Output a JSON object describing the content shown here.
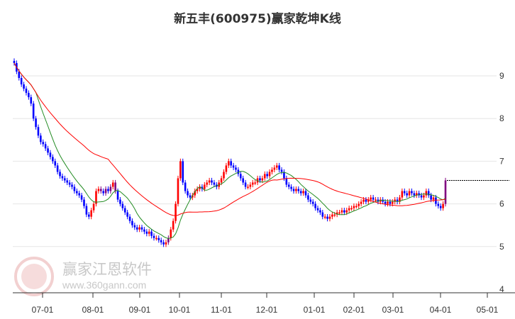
{
  "chart_data": {
    "type": "candlestick",
    "title": "新五丰(600975)赢家乾坤K线",
    "ylim": [
      4,
      9.4
    ],
    "y_ticks": [
      "9",
      "8",
      "7",
      "6",
      "5",
      "4"
    ],
    "x_ticks": [
      "07-01",
      "08-01",
      "09-01",
      "10-01",
      "11-01",
      "12-01",
      "01-01",
      "02-01",
      "03-01",
      "04-01",
      "05-01"
    ],
    "grid": true,
    "colors": {
      "up": "#ff0000",
      "down": "#0000ff",
      "special": "#800080",
      "ma_short": "#228b22",
      "ma_long": "#ff0000",
      "last_price_line": "#000000"
    },
    "closes": [
      9.3,
      9.1,
      8.95,
      8.8,
      8.7,
      8.6,
      8.5,
      8.35,
      8.0,
      7.8,
      7.6,
      7.45,
      7.4,
      7.3,
      7.2,
      7.1,
      7.0,
      6.9,
      6.75,
      6.65,
      6.6,
      6.55,
      6.5,
      6.45,
      6.4,
      6.3,
      6.25,
      6.2,
      6.1,
      5.95,
      5.75,
      5.7,
      5.85,
      6.0,
      6.3,
      6.35,
      6.3,
      6.25,
      6.35,
      6.3,
      6.4,
      6.5,
      6.3,
      6.1,
      6.0,
      5.9,
      5.8,
      5.7,
      5.6,
      5.5,
      5.45,
      5.4,
      5.45,
      5.4,
      5.35,
      5.3,
      5.35,
      5.25,
      5.2,
      5.2,
      5.15,
      5.1,
      5.05,
      5.1,
      5.2,
      5.4,
      5.6,
      6.0,
      6.6,
      7.0,
      6.5,
      6.3,
      6.2,
      6.15,
      6.2,
      6.3,
      6.35,
      6.4,
      6.35,
      6.45,
      6.5,
      6.55,
      6.5,
      6.45,
      6.4,
      6.5,
      6.6,
      6.75,
      6.9,
      7.0,
      6.9,
      6.85,
      6.8,
      6.7,
      6.6,
      6.5,
      6.4,
      6.4,
      6.45,
      6.5,
      6.5,
      6.6,
      6.55,
      6.6,
      6.7,
      6.65,
      6.75,
      6.8,
      6.85,
      6.9,
      6.8,
      6.75,
      6.6,
      6.45,
      6.4,
      6.35,
      6.3,
      6.35,
      6.3,
      6.25,
      6.3,
      6.2,
      6.1,
      6.05,
      6.0,
      5.9,
      5.85,
      5.8,
      5.7,
      5.7,
      5.65,
      5.7,
      5.75,
      5.75,
      5.8,
      5.8,
      5.85,
      5.8,
      5.85,
      5.9,
      5.9,
      5.95,
      5.95,
      6.0,
      6.05,
      6.1,
      6.05,
      6.1,
      6.15,
      6.1,
      6.1,
      6.05,
      6.1,
      6.05,
      6.0,
      6.05,
      6.0,
      6.05,
      6.1,
      6.05,
      6.15,
      6.3,
      6.25,
      6.2,
      6.3,
      6.25,
      6.2,
      6.25,
      6.2,
      6.15,
      6.2,
      6.3,
      6.2,
      6.1,
      6.15,
      6.0,
      5.95,
      5.9,
      6.0,
      6.55
    ],
    "last_close": 6.55
  },
  "watermark": {
    "logo_chars": "江赢恩家",
    "brand": "赢家江恩软件",
    "url": "www.360gann.com"
  }
}
